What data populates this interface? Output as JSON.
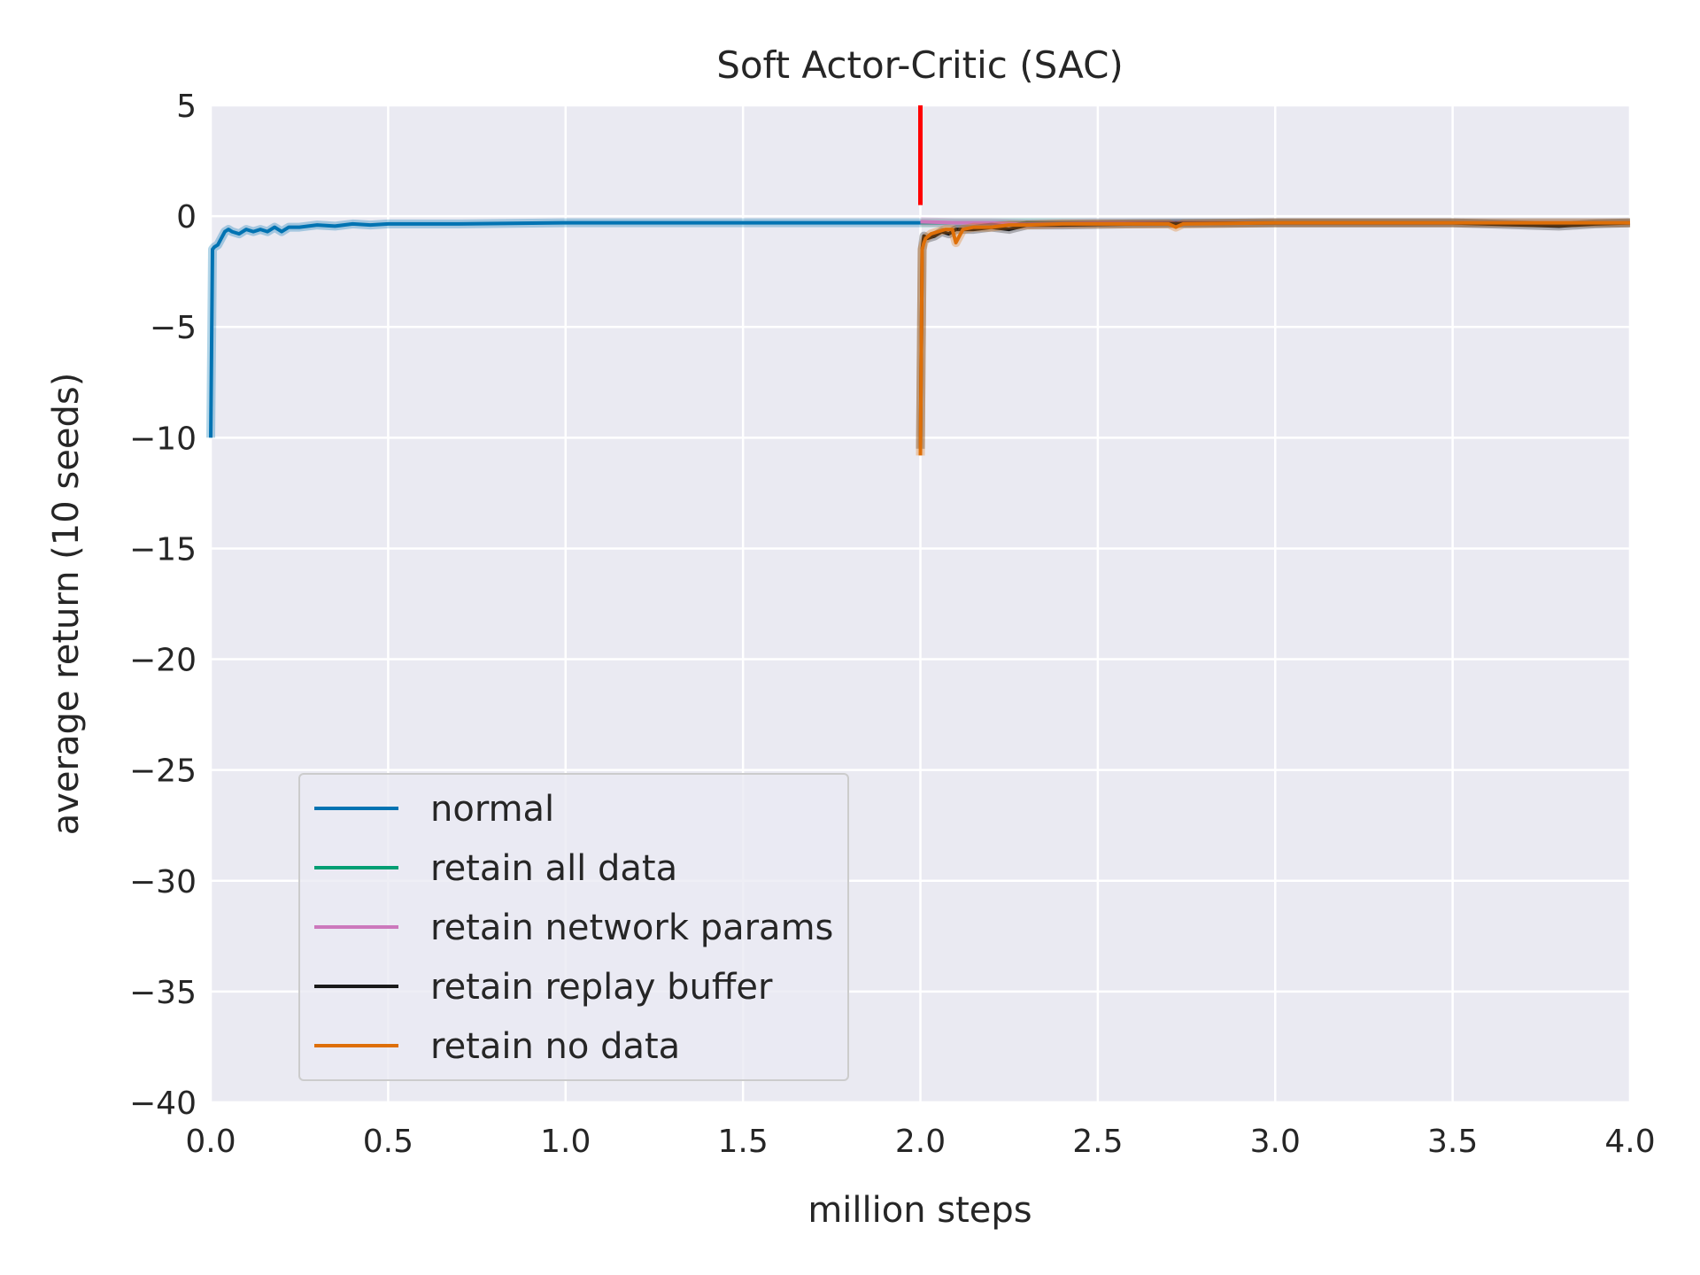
{
  "chart_data": {
    "type": "line",
    "title": "Soft Actor-Critic (SAC)",
    "xlabel": "million steps",
    "ylabel": "average return (10 seeds)",
    "xlim": [
      0,
      4
    ],
    "ylim": [
      -40,
      5
    ],
    "xticks": [
      "0.0",
      "0.5",
      "1.0",
      "1.5",
      "2.0",
      "2.5",
      "3.0",
      "3.5",
      "4.0"
    ],
    "yticks": [
      "5",
      "0",
      "−5",
      "−10",
      "−15",
      "−20",
      "−25",
      "−30",
      "−35",
      "−40"
    ],
    "grid": true,
    "background": "#eaeaf2",
    "legend_position": "lower-left",
    "marker_line": {
      "x": 2.0,
      "y_range": [
        0.5,
        5
      ],
      "color": "#ff0000"
    },
    "series": [
      {
        "name": "normal",
        "color": "#0173b2",
        "x": [
          0.0,
          0.005,
          0.01,
          0.02,
          0.03,
          0.04,
          0.05,
          0.06,
          0.08,
          0.1,
          0.12,
          0.14,
          0.16,
          0.18,
          0.2,
          0.22,
          0.25,
          0.3,
          0.35,
          0.4,
          0.45,
          0.5,
          0.7,
          1.0,
          1.3,
          1.6,
          1.9,
          2.0
        ],
        "y": [
          -10.0,
          -1.5,
          -1.4,
          -1.3,
          -1.0,
          -0.7,
          -0.6,
          -0.7,
          -0.8,
          -0.6,
          -0.7,
          -0.6,
          -0.7,
          -0.5,
          -0.7,
          -0.5,
          -0.5,
          -0.4,
          -0.45,
          -0.35,
          -0.4,
          -0.35,
          -0.35,
          -0.3,
          -0.3,
          -0.3,
          -0.3,
          -0.3
        ]
      },
      {
        "name": "retain all data",
        "color": "#029e73",
        "x": [
          2.0,
          2.5,
          3.0,
          3.5,
          4.0
        ],
        "y": [
          -0.3,
          -0.3,
          -0.3,
          -0.3,
          -0.3
        ]
      },
      {
        "name": "retain network params",
        "color": "#cc78bc",
        "x": [
          2.0,
          2.1,
          2.2,
          2.3,
          2.5,
          3.0,
          3.5,
          4.0
        ],
        "y": [
          -0.25,
          -0.3,
          -0.3,
          -0.35,
          -0.3,
          -0.3,
          -0.3,
          -0.3
        ]
      },
      {
        "name": "retain replay buffer",
        "color": "#1a1a1a",
        "x": [
          2.0,
          2.005,
          2.01,
          2.02,
          2.04,
          2.06,
          2.08,
          2.1,
          2.15,
          2.2,
          2.25,
          2.3,
          2.4,
          2.6,
          3.0,
          3.5,
          3.6,
          3.7,
          3.8,
          3.9,
          4.0
        ],
        "y": [
          -10.5,
          -1.5,
          -0.9,
          -1.0,
          -0.9,
          -0.7,
          -0.8,
          -0.6,
          -0.6,
          -0.5,
          -0.6,
          -0.4,
          -0.4,
          -0.35,
          -0.3,
          -0.3,
          -0.35,
          -0.4,
          -0.45,
          -0.35,
          -0.3
        ]
      },
      {
        "name": "retain no data",
        "color": "#de6f08",
        "x": [
          2.0,
          2.005,
          2.01,
          2.015,
          2.03,
          2.05,
          2.07,
          2.09,
          2.1,
          2.12,
          2.15,
          2.2,
          2.25,
          2.3,
          2.4,
          2.5,
          2.7,
          2.72,
          2.74,
          3.0,
          3.5,
          4.0
        ],
        "y": [
          -10.8,
          -1.5,
          -1.2,
          -1.0,
          -0.8,
          -0.7,
          -0.6,
          -0.6,
          -1.2,
          -0.6,
          -0.5,
          -0.5,
          -0.4,
          -0.4,
          -0.35,
          -0.35,
          -0.35,
          -0.5,
          -0.35,
          -0.3,
          -0.3,
          -0.3
        ]
      }
    ]
  }
}
